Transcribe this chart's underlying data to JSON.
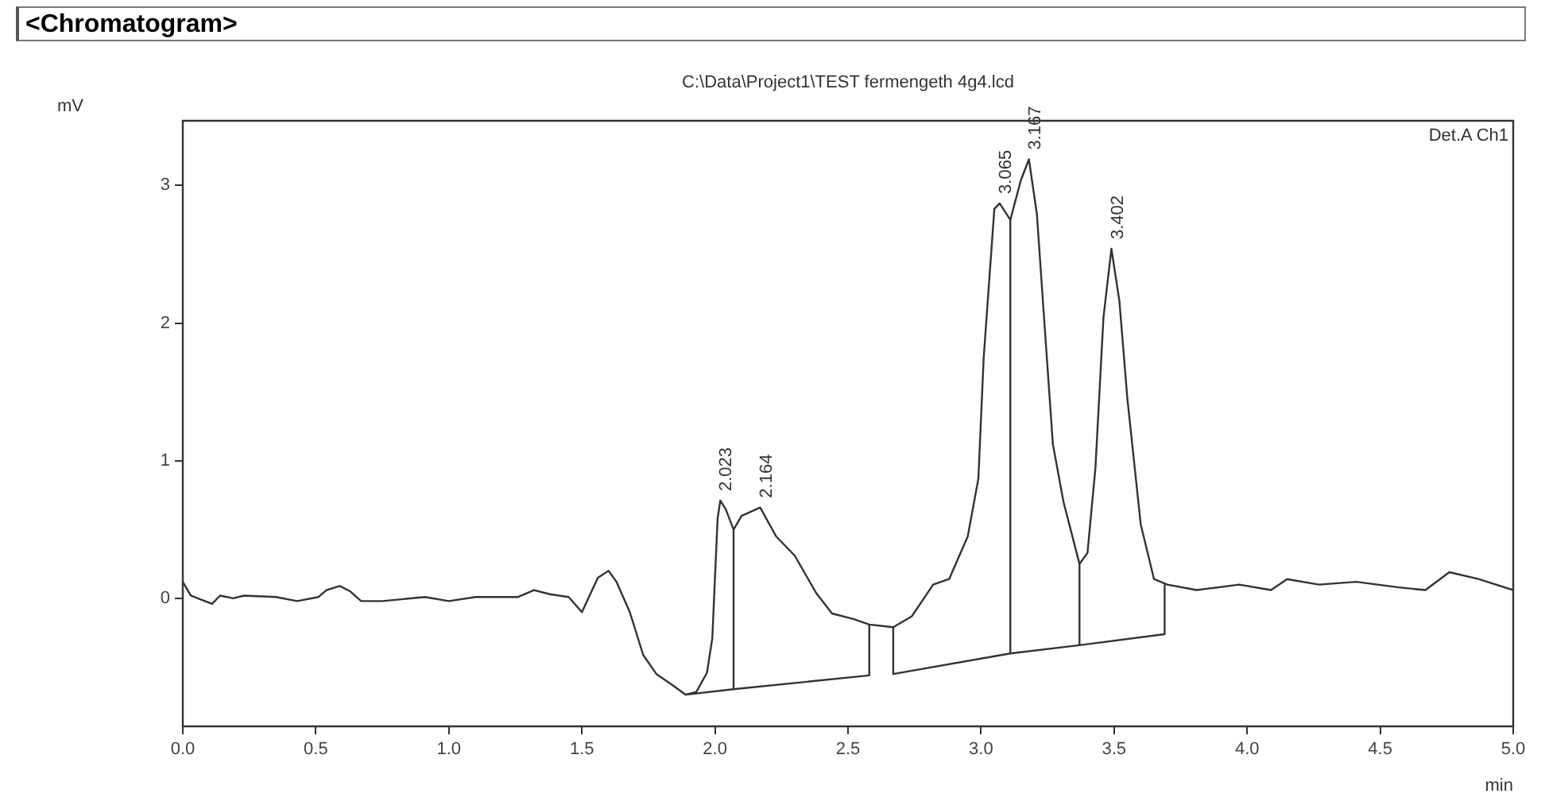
{
  "chart_data": {
    "type": "line",
    "title": "<Chromatogram>",
    "subtitle": "C:\\Data\\Project1\\TEST fermengeth 4g4.lcd",
    "xlabel": "min",
    "ylabel": "mV",
    "legend": "top right",
    "grid": false,
    "marker": "none",
    "line_style": "solid",
    "xlim": [
      0,
      5
    ],
    "ylim": [
      -0.93,
      3.47
    ],
    "xticks": [
      {
        "value": 0,
        "label": "0.0"
      },
      {
        "value": 0.5,
        "label": "0.5"
      },
      {
        "value": 1,
        "label": "1.0"
      },
      {
        "value": 1.5,
        "label": "1.5"
      },
      {
        "value": 2,
        "label": "2.0"
      },
      {
        "value": 2.5,
        "label": "2.5"
      },
      {
        "value": 3,
        "label": "3.0"
      },
      {
        "value": 3.5,
        "label": "3.5"
      },
      {
        "value": 4,
        "label": "4.0"
      },
      {
        "value": 4.5,
        "label": "4.5"
      },
      {
        "value": 5,
        "label": "5.0"
      }
    ],
    "yticks": [
      0,
      1,
      2,
      3
    ],
    "series": [
      {
        "name": "Det.A Ch1",
        "color": "#333333",
        "x": [
          0,
          0.03,
          0.11,
          0.14,
          0.19,
          0.23,
          0.35,
          0.43,
          0.51,
          0.54,
          0.59,
          0.63,
          0.67,
          0.75,
          0.91,
          1.0,
          1.1,
          1.26,
          1.32,
          1.38,
          1.45,
          1.5,
          1.56,
          1.6,
          1.63,
          1.68,
          1.73,
          1.78,
          1.84,
          1.89,
          1.93,
          1.97,
          1.99,
          2.01,
          2.02,
          2.04,
          2.07,
          2.1,
          2.17,
          2.23,
          2.3,
          2.38,
          2.44,
          2.52,
          2.58,
          2.67,
          2.74,
          2.82,
          2.88,
          2.95,
          2.99,
          3.01,
          3.05,
          3.07,
          3.11,
          3.15,
          3.18,
          3.21,
          3.24,
          3.27,
          3.31,
          3.37,
          3.4,
          3.43,
          3.46,
          3.49,
          3.52,
          3.55,
          3.6,
          3.65,
          3.7,
          3.81,
          3.97,
          4.09,
          4.15,
          4.27,
          4.41,
          4.57,
          4.67,
          4.76,
          4.87,
          5.0
        ],
        "values": [
          0.12,
          0.02,
          -0.04,
          0.02,
          0,
          0.02,
          0.01,
          -0.02,
          0.01,
          0.06,
          0.09,
          0.05,
          -0.02,
          -0.02,
          0.01,
          -0.02,
          0.01,
          0.01,
          0.06,
          0.03,
          0.01,
          -0.1,
          0.15,
          0.2,
          0.12,
          -0.1,
          -0.41,
          -0.55,
          -0.63,
          -0.7,
          -0.68,
          -0.54,
          -0.29,
          0.58,
          0.71,
          0.65,
          0.5,
          0.6,
          0.66,
          0.45,
          0.31,
          0.04,
          -0.11,
          -0.15,
          -0.19,
          -0.21,
          -0.13,
          0.1,
          0.14,
          0.45,
          0.87,
          1.75,
          2.83,
          2.87,
          2.75,
          3.04,
          3.19,
          2.79,
          1.95,
          1.12,
          0.7,
          0.25,
          0.33,
          0.95,
          2.04,
          2.54,
          2.16,
          1.45,
          0.54,
          0.14,
          0.1,
          0.06,
          0.1,
          0.06,
          0.14,
          0.1,
          0.12,
          0.08,
          0.06,
          0.19,
          0.14,
          0.06
        ]
      },
      {
        "color": "#333333",
        "x": [
          1.89,
          2.07,
          2.58,
          2.58,
          2.62,
          2.67,
          2.67,
          3.11,
          3.37,
          3.69,
          3.69
        ],
        "values": [
          -0.7,
          -0.66,
          -0.56,
          -0.19,
          null,
          -0.21,
          -0.55,
          -0.4,
          -0.34,
          -0.26,
          0.1
        ]
      },
      {
        "color": "#333333",
        "x": [
          2.07,
          2.07,
          2.09,
          3.11,
          3.11,
          3.2,
          3.37,
          3.37
        ],
        "values": [
          -0.66,
          0.5,
          null,
          -0.4,
          2.75,
          null,
          -0.34,
          0.25
        ]
      }
    ],
    "annotations": [
      {
        "text": "2.023",
        "x": 2.02,
        "y": 0.71
      },
      {
        "text": "2.164",
        "x": 2.17,
        "y": 0.66
      },
      {
        "text": "3.065",
        "x": 3.07,
        "y": 2.87
      },
      {
        "text": "3.167",
        "x": 3.18,
        "y": 3.19
      },
      {
        "text": "3.402",
        "x": 3.49,
        "y": 2.54
      }
    ]
  }
}
